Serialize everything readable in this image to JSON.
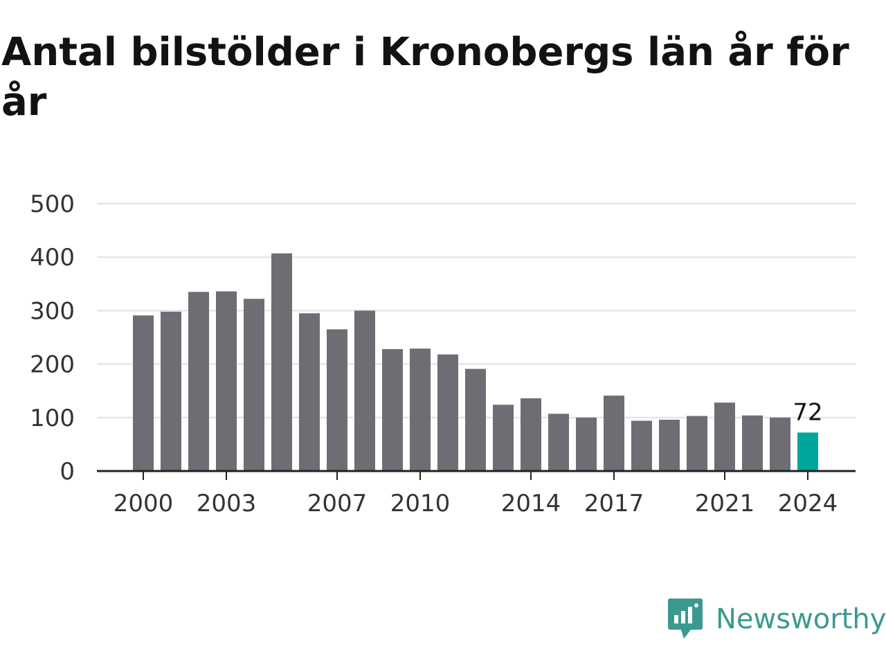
{
  "title": "Antal bilstölder i Kronobergs län år för år",
  "brand": {
    "name": "Newsworthy",
    "color": "#3a9a8f"
  },
  "colors": {
    "bar": "#6d6d73",
    "highlight": "#00a69b",
    "grid": "#e0e0e0",
    "axis": "#222222"
  },
  "chart_data": {
    "type": "bar",
    "title": "Antal bilstölder i Kronobergs län år för år",
    "xlabel": "",
    "ylabel": "",
    "ylim": [
      0,
      500
    ],
    "yticks": [
      0,
      100,
      200,
      300,
      400,
      500
    ],
    "xtick_labels": [
      "2000",
      "2003",
      "2007",
      "2010",
      "2014",
      "2017",
      "2021",
      "2024"
    ],
    "categories": [
      "2000",
      "2001",
      "2002",
      "2003",
      "2004",
      "2005",
      "2006",
      "2007",
      "2008",
      "2009",
      "2010",
      "2011",
      "2012",
      "2013",
      "2014",
      "2015",
      "2016",
      "2017",
      "2018",
      "2019",
      "2020",
      "2021",
      "2022",
      "2023",
      "2024"
    ],
    "values": [
      291,
      298,
      335,
      336,
      322,
      407,
      295,
      265,
      300,
      228,
      229,
      218,
      191,
      124,
      136,
      107,
      100,
      141,
      94,
      96,
      103,
      128,
      104,
      100,
      72
    ],
    "highlight_index": 24,
    "value_labels": [
      {
        "category": "2024",
        "text": "72"
      }
    ],
    "grid": true,
    "legend": "none"
  }
}
